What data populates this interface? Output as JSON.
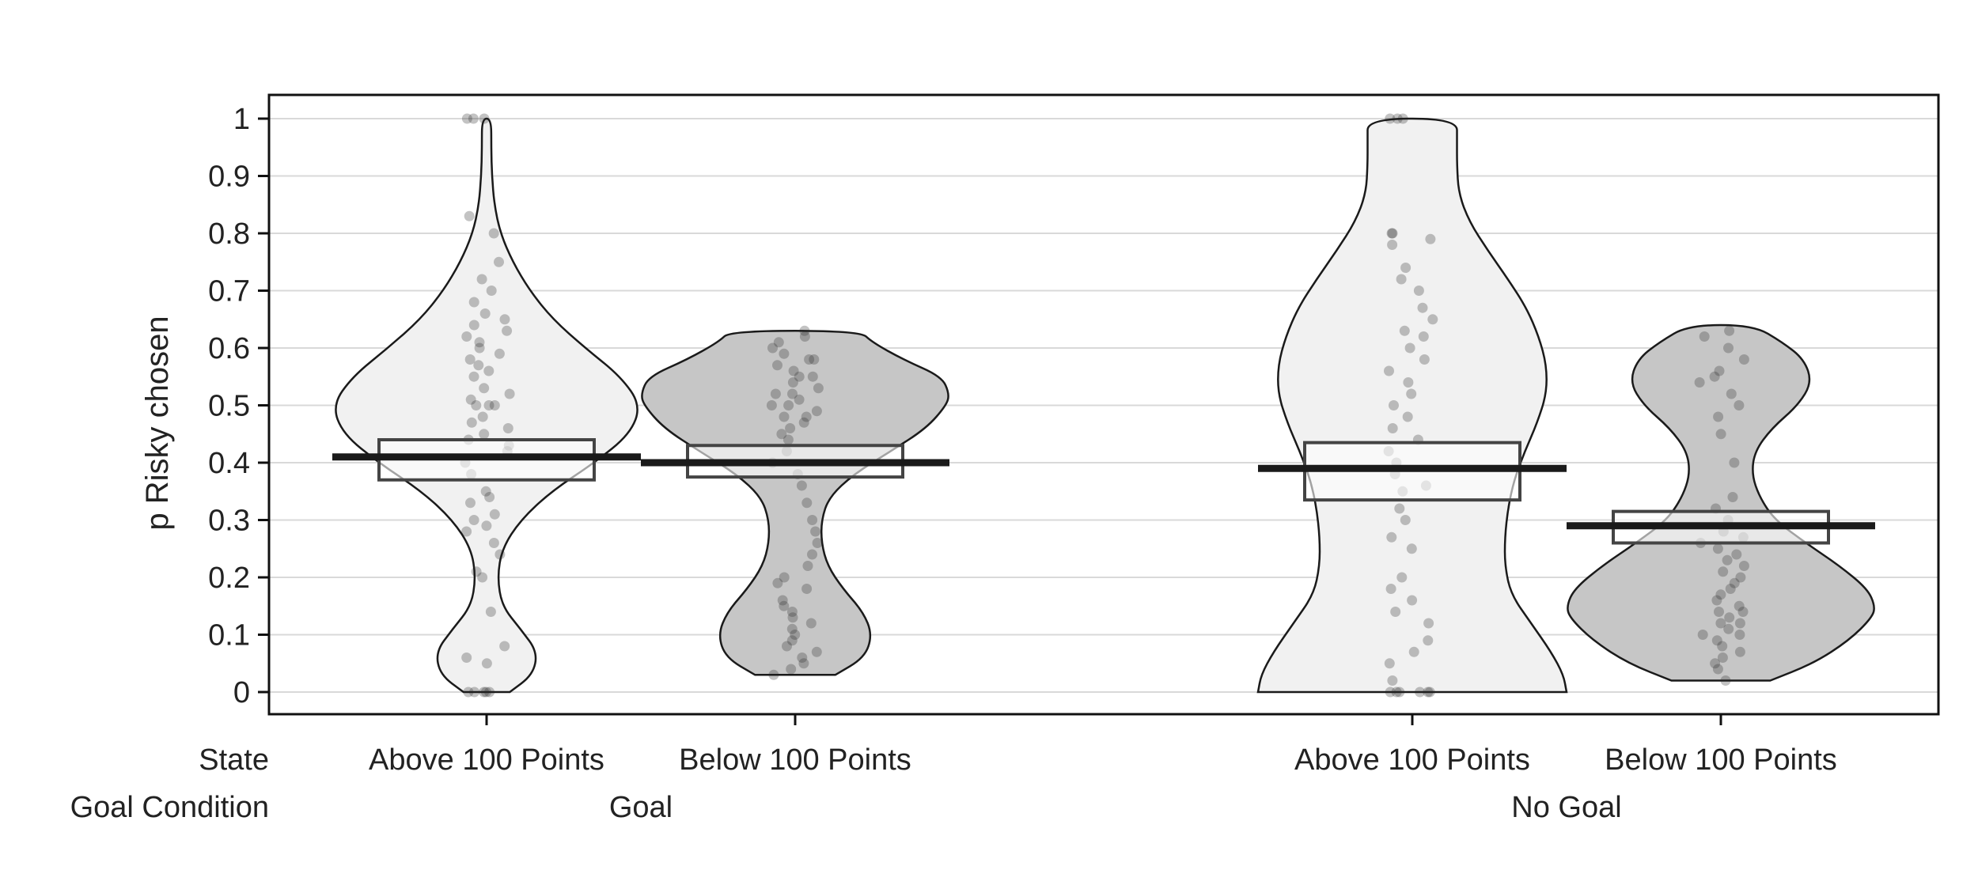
{
  "chart_data": {
    "type": "violin",
    "title": "",
    "ylabel": "p Risky chosen",
    "ylim": [
      0,
      1
    ],
    "yticks": [
      "0",
      "0.1",
      "0.2",
      "0.3",
      "0.4",
      "0.5",
      "0.6",
      "0.7",
      "0.8",
      "0.9",
      "1"
    ],
    "row_labels": {
      "state": "State",
      "goal": "Goal Condition"
    },
    "goal_labels": [
      "Goal",
      "No Goal"
    ],
    "fill_colors": {
      "above": "#f1f1f1",
      "below": "#c6c6c6"
    },
    "groups": [
      {
        "goal": "Goal",
        "state": "Above 100 Points",
        "fill": "above",
        "mean": 0.41,
        "ci": [
          0.37,
          0.44
        ],
        "profile": [
          [
            0.0,
            0.15
          ],
          [
            0.03,
            0.3
          ],
          [
            0.07,
            0.33
          ],
          [
            0.11,
            0.22
          ],
          [
            0.15,
            0.1
          ],
          [
            0.2,
            0.07
          ],
          [
            0.25,
            0.1
          ],
          [
            0.3,
            0.22
          ],
          [
            0.35,
            0.42
          ],
          [
            0.4,
            0.7
          ],
          [
            0.45,
            0.93
          ],
          [
            0.5,
            1.0
          ],
          [
            0.55,
            0.87
          ],
          [
            0.6,
            0.64
          ],
          [
            0.65,
            0.43
          ],
          [
            0.7,
            0.28
          ],
          [
            0.75,
            0.17
          ],
          [
            0.8,
            0.09
          ],
          [
            0.85,
            0.05
          ],
          [
            0.9,
            0.035
          ],
          [
            0.95,
            0.03
          ],
          [
            1.0,
            0.03
          ]
        ],
        "points": [
          0,
          0,
          0,
          0,
          0,
          0.05,
          0.06,
          0.08,
          0.14,
          0.2,
          0.21,
          0.24,
          0.26,
          0.28,
          0.29,
          0.3,
          0.31,
          0.33,
          0.34,
          0.35,
          0.38,
          0.4,
          0.42,
          0.43,
          0.44,
          0.45,
          0.46,
          0.47,
          0.48,
          0.5,
          0.5,
          0.5,
          0.51,
          0.52,
          0.53,
          0.55,
          0.56,
          0.57,
          0.58,
          0.59,
          0.6,
          0.61,
          0.62,
          0.63,
          0.64,
          0.65,
          0.66,
          0.68,
          0.7,
          0.72,
          0.75,
          0.8,
          0.83,
          1,
          1,
          1
        ]
      },
      {
        "goal": "Goal",
        "state": "Below 100 Points",
        "fill": "below",
        "mean": 0.4,
        "ci": [
          0.375,
          0.43
        ],
        "profile": [
          [
            0.03,
            0.26
          ],
          [
            0.06,
            0.45
          ],
          [
            0.1,
            0.5
          ],
          [
            0.14,
            0.44
          ],
          [
            0.18,
            0.31
          ],
          [
            0.22,
            0.21
          ],
          [
            0.26,
            0.17
          ],
          [
            0.3,
            0.17
          ],
          [
            0.34,
            0.22
          ],
          [
            0.38,
            0.38
          ],
          [
            0.42,
            0.62
          ],
          [
            0.46,
            0.85
          ],
          [
            0.5,
            0.98
          ],
          [
            0.52,
            1.0
          ],
          [
            0.55,
            0.95
          ],
          [
            0.58,
            0.7
          ],
          [
            0.61,
            0.5
          ],
          [
            0.63,
            0.42
          ]
        ],
        "points": [
          0.03,
          0.04,
          0.05,
          0.06,
          0.07,
          0.08,
          0.09,
          0.1,
          0.11,
          0.12,
          0.13,
          0.14,
          0.15,
          0.16,
          0.18,
          0.19,
          0.2,
          0.22,
          0.24,
          0.26,
          0.28,
          0.3,
          0.33,
          0.36,
          0.38,
          0.4,
          0.42,
          0.44,
          0.45,
          0.46,
          0.47,
          0.48,
          0.48,
          0.49,
          0.5,
          0.5,
          0.51,
          0.52,
          0.52,
          0.53,
          0.54,
          0.55,
          0.55,
          0.56,
          0.57,
          0.58,
          0.58,
          0.59,
          0.6,
          0.61,
          0.62,
          0.63
        ]
      },
      {
        "goal": "No Goal",
        "state": "Above 100 Points",
        "fill": "above",
        "mean": 0.39,
        "ci": [
          0.335,
          0.435
        ],
        "profile": [
          [
            0.0,
            1.0
          ],
          [
            0.03,
            0.98
          ],
          [
            0.07,
            0.9
          ],
          [
            0.12,
            0.77
          ],
          [
            0.17,
            0.64
          ],
          [
            0.22,
            0.6
          ],
          [
            0.27,
            0.6
          ],
          [
            0.32,
            0.62
          ],
          [
            0.37,
            0.66
          ],
          [
            0.42,
            0.73
          ],
          [
            0.47,
            0.81
          ],
          [
            0.52,
            0.87
          ],
          [
            0.57,
            0.87
          ],
          [
            0.62,
            0.82
          ],
          [
            0.67,
            0.74
          ],
          [
            0.72,
            0.62
          ],
          [
            0.77,
            0.49
          ],
          [
            0.82,
            0.37
          ],
          [
            0.87,
            0.3
          ],
          [
            0.92,
            0.29
          ],
          [
            0.96,
            0.29
          ],
          [
            1.0,
            0.29
          ]
        ],
        "points": [
          0,
          0,
          0,
          0,
          0,
          0,
          0.02,
          0.05,
          0.07,
          0.09,
          0.12,
          0.14,
          0.16,
          0.18,
          0.2,
          0.25,
          0.27,
          0.3,
          0.32,
          0.35,
          0.36,
          0.38,
          0.4,
          0.42,
          0.44,
          0.46,
          0.48,
          0.5,
          0.52,
          0.54,
          0.56,
          0.58,
          0.6,
          0.62,
          0.63,
          0.65,
          0.67,
          0.7,
          0.72,
          0.74,
          0.78,
          0.79,
          0.8,
          0.8,
          1,
          1,
          1
        ]
      },
      {
        "goal": "No Goal",
        "state": "Below 100 Points",
        "fill": "below",
        "mean": 0.29,
        "ci": [
          0.26,
          0.315
        ],
        "profile": [
          [
            0.02,
            0.32
          ],
          [
            0.05,
            0.6
          ],
          [
            0.09,
            0.83
          ],
          [
            0.13,
            0.98
          ],
          [
            0.15,
            1.0
          ],
          [
            0.18,
            0.95
          ],
          [
            0.22,
            0.77
          ],
          [
            0.26,
            0.55
          ],
          [
            0.3,
            0.35
          ],
          [
            0.34,
            0.25
          ],
          [
            0.38,
            0.2
          ],
          [
            0.42,
            0.22
          ],
          [
            0.46,
            0.33
          ],
          [
            0.5,
            0.5
          ],
          [
            0.54,
            0.59
          ],
          [
            0.58,
            0.54
          ],
          [
            0.61,
            0.4
          ],
          [
            0.64,
            0.21
          ]
        ],
        "points": [
          0.02,
          0.04,
          0.05,
          0.06,
          0.07,
          0.08,
          0.09,
          0.1,
          0.1,
          0.11,
          0.12,
          0.12,
          0.13,
          0.14,
          0.14,
          0.15,
          0.16,
          0.17,
          0.18,
          0.19,
          0.2,
          0.21,
          0.22,
          0.23,
          0.24,
          0.25,
          0.26,
          0.27,
          0.28,
          0.3,
          0.32,
          0.34,
          0.4,
          0.45,
          0.48,
          0.5,
          0.52,
          0.54,
          0.55,
          0.56,
          0.58,
          0.6,
          0.62,
          0.63
        ]
      }
    ]
  }
}
